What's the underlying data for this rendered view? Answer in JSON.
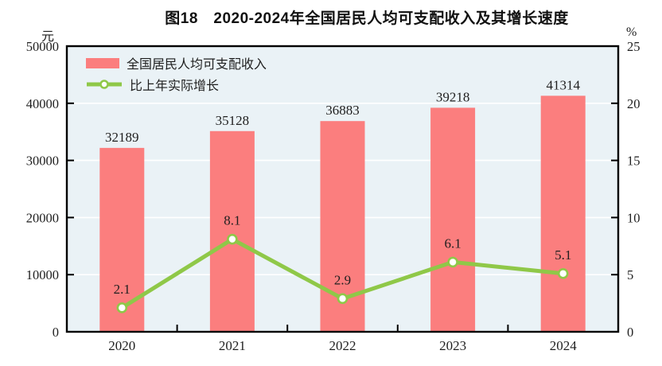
{
  "chart_data": {
    "type": "bar+line",
    "title": "图18　2020-2024年全国居民人均可支配收入及其增长速度",
    "categories": [
      "2020",
      "2021",
      "2022",
      "2023",
      "2024"
    ],
    "series": [
      {
        "name": "全国居民人均可支配收入",
        "type": "bar",
        "axis": "left",
        "color": "#fb7e7e",
        "values": [
          32189,
          35128,
          36883,
          39218,
          41314
        ],
        "labels": [
          "32189",
          "35128",
          "36883",
          "39218",
          "41314"
        ]
      },
      {
        "name": "比上年实际增长",
        "type": "line",
        "axis": "right",
        "color": "#8fc848",
        "marker_fill": "#ffffff",
        "values": [
          2.1,
          8.1,
          2.9,
          6.1,
          5.1
        ],
        "labels": [
          "2.1",
          "8.1",
          "2.9",
          "6.1",
          "5.1"
        ]
      }
    ],
    "left_axis": {
      "unit": "元",
      "min": 0,
      "max": 50000,
      "tick_labels": [
        "0",
        "10000",
        "20000",
        "30000",
        "40000",
        "50000"
      ]
    },
    "right_axis": {
      "unit": "%",
      "min": 0,
      "max": 25,
      "tick_labels": [
        "0",
        "5",
        "10",
        "15",
        "20",
        "25"
      ]
    },
    "grid": true,
    "legend_position": "top-left-inside",
    "plot_bg_color": "#eaf2f6",
    "grid_color": "#ffffff",
    "axis_color": "#000000",
    "text_color": "#1f1f1f"
  }
}
